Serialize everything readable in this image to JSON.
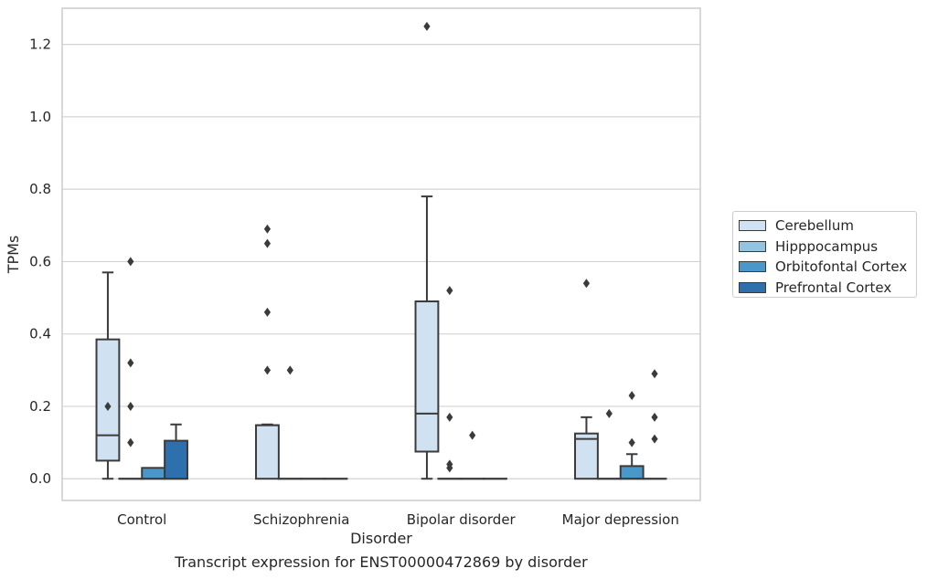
{
  "chart_data": {
    "type": "box",
    "xlabel": "Disorder",
    "ylabel": "TPMs",
    "caption": "Transcript expression for ENST00000472869 by disorder",
    "categories": [
      "Control",
      "Schizophrenia",
      "Bipolar disorder",
      "Major depression"
    ],
    "ylim": [
      -0.06,
      1.3
    ],
    "yticks": [
      "0.0",
      "0.2",
      "0.4",
      "0.6",
      "0.8",
      "1.0",
      "1.2"
    ],
    "ytick_values": [
      0.0,
      0.2,
      0.4,
      0.6,
      0.8,
      1.0,
      1.2
    ],
    "grid": true,
    "legend_position": "right",
    "series": [
      {
        "name": "Cerebellum",
        "color": "#d0e1f2",
        "boxes": [
          {
            "whislo": 0.0,
            "q1": 0.05,
            "med": 0.12,
            "q3": 0.385,
            "whishi": 0.57,
            "fliers": [
              0.2
            ]
          },
          {
            "whislo": 0.0,
            "q1": 0.0,
            "med": 0.148,
            "q3": 0.148,
            "whishi": 0.15,
            "fliers": [
              0.46,
              0.65,
              0.69,
              0.3
            ]
          },
          {
            "whislo": 0.0,
            "q1": 0.075,
            "med": 0.18,
            "q3": 0.49,
            "whishi": 0.78,
            "fliers": [
              1.25
            ]
          },
          {
            "whislo": 0.0,
            "q1": 0.0,
            "med": 0.11,
            "q3": 0.125,
            "whishi": 0.17,
            "fliers": [
              0.54
            ]
          }
        ]
      },
      {
        "name": "Hipppocampus",
        "color": "#94c4df",
        "boxes": [
          {
            "whislo": 0.0,
            "q1": 0.0,
            "med": 0.0,
            "q3": 0.0,
            "whishi": 0.0,
            "fliers": [
              0.2,
              0.6,
              0.32,
              0.1
            ]
          },
          {
            "whislo": 0.0,
            "q1": 0.0,
            "med": 0.0,
            "q3": 0.0,
            "whishi": 0.0,
            "fliers": [
              0.3
            ]
          },
          {
            "whislo": 0.0,
            "q1": 0.0,
            "med": 0.0,
            "q3": 0.0,
            "whishi": 0.0,
            "fliers": [
              0.52,
              0.17,
              0.04,
              0.03
            ]
          },
          {
            "whislo": 0.0,
            "q1": 0.0,
            "med": 0.0,
            "q3": 0.0,
            "whishi": 0.0,
            "fliers": [
              0.18
            ]
          }
        ]
      },
      {
        "name": "Orbitofontal Cortex",
        "color": "#4a98c9",
        "boxes": [
          {
            "whislo": 0.0,
            "q1": 0.0,
            "med": 0.0,
            "q3": 0.03,
            "whishi": 0.03,
            "fliers": []
          },
          {
            "whislo": 0.0,
            "q1": 0.0,
            "med": 0.0,
            "q3": 0.0,
            "whishi": 0.0,
            "fliers": []
          },
          {
            "whislo": 0.0,
            "q1": 0.0,
            "med": 0.0,
            "q3": 0.0,
            "whishi": 0.0,
            "fliers": [
              0.12
            ]
          },
          {
            "whislo": 0.0,
            "q1": 0.0,
            "med": 0.0,
            "q3": 0.035,
            "whishi": 0.068,
            "fliers": [
              0.23,
              0.1
            ]
          }
        ]
      },
      {
        "name": "Prefrontal Cortex",
        "color": "#2e6fae",
        "boxes": [
          {
            "whislo": 0.0,
            "q1": 0.0,
            "med": 0.0,
            "q3": 0.105,
            "whishi": 0.15,
            "fliers": []
          },
          {
            "whislo": 0.0,
            "q1": 0.0,
            "med": 0.0,
            "q3": 0.0,
            "whishi": 0.0,
            "fliers": []
          },
          {
            "whislo": 0.0,
            "q1": 0.0,
            "med": 0.0,
            "q3": 0.0,
            "whishi": 0.0,
            "fliers": []
          },
          {
            "whislo": 0.0,
            "q1": 0.0,
            "med": 0.0,
            "q3": 0.0,
            "whishi": 0.0,
            "fliers": [
              0.29,
              0.17,
              0.11
            ]
          }
        ]
      }
    ]
  }
}
